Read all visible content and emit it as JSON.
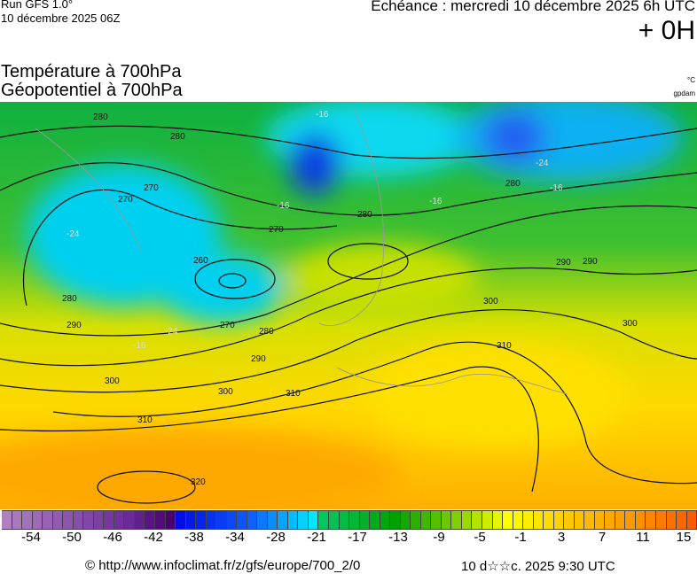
{
  "header": {
    "run": "Run GFS 1.0°",
    "run_date": "10 décembre 2025 06Z",
    "echeance": "Echéance : mercredi 10 décembre 2025 6h UTC",
    "lead_time": "+ 0H",
    "title_temperature": "Température à 700hPa",
    "title_geopotential": "Géopotentiel à 700hPa",
    "unit_temperature": "°C",
    "unit_geopotential": "gpdam"
  },
  "map": {
    "geopotential_labels": [
      "280",
      "280",
      "270",
      "270",
      "280",
      "270",
      "260",
      "280",
      "290",
      "270",
      "280",
      "290",
      "300",
      "300",
      "310",
      "310",
      "320",
      "290",
      "280",
      "300",
      "310",
      "290",
      "300"
    ],
    "temperature_labels": [
      "-16",
      "-16",
      "-16",
      "-24",
      "-24",
      "-16",
      "-24",
      "-16"
    ]
  },
  "colorbar": {
    "tick_labels": [
      "-54",
      "-50",
      "-46",
      "-42",
      "-38",
      "-34",
      "-28",
      "-21",
      "-17",
      "-13",
      "-9",
      "-5",
      "-1",
      "3",
      "7",
      "11",
      "15"
    ],
    "color_stops": [
      "#b080c0",
      "#6a2a9a",
      "#4a006e",
      "#0000e0",
      "#1060ff",
      "#00e8ff",
      "#00c860",
      "#00a000",
      "#80d000",
      "#ffff00",
      "#ffc000",
      "#ff9000",
      "#ff5a00"
    ]
  },
  "footer": {
    "copyright": "© http://www.infoclimat.fr/z/gfs/europe/700_2/0",
    "generated": "10 d☆☆c. 2025  9:30 UTC"
  }
}
